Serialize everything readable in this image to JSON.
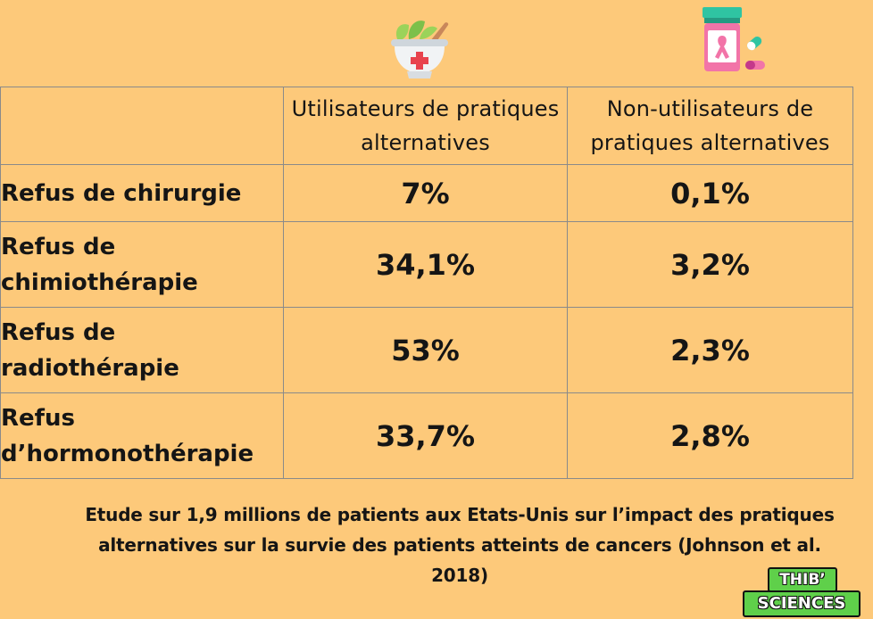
{
  "icons": {
    "left": "herbal-mortar-icon",
    "right": "pill-bottle-icon"
  },
  "table": {
    "headers": [
      "",
      "Utilisateurs de pratiques alternatives",
      "Non-utilisateurs de pratiques alternatives"
    ],
    "rows": [
      {
        "label": "Refus de chirurgie",
        "users": "7%",
        "non_users": "0,1%"
      },
      {
        "label": "Refus de chimiothérapie",
        "users": "34,1%",
        "non_users": "3,2%"
      },
      {
        "label": "Refus de radiothérapie",
        "users": "53%",
        "non_users": "2,3%"
      },
      {
        "label": "Refus d’hormonothérapie",
        "users": "33,7%",
        "non_users": "2,8%"
      }
    ]
  },
  "caption": "Etude sur 1,9 millions de patients aux Etats-Unis sur l’impact des pratiques alternatives sur la survie des patients atteints de cancers (Johnson et al. 2018)",
  "logo": {
    "line1": "THIB’",
    "line2": "SCIENCES"
  },
  "colors": {
    "background": "#fdc97a",
    "grid": "#8a8a8a",
    "logo_green": "#5fd04a"
  }
}
